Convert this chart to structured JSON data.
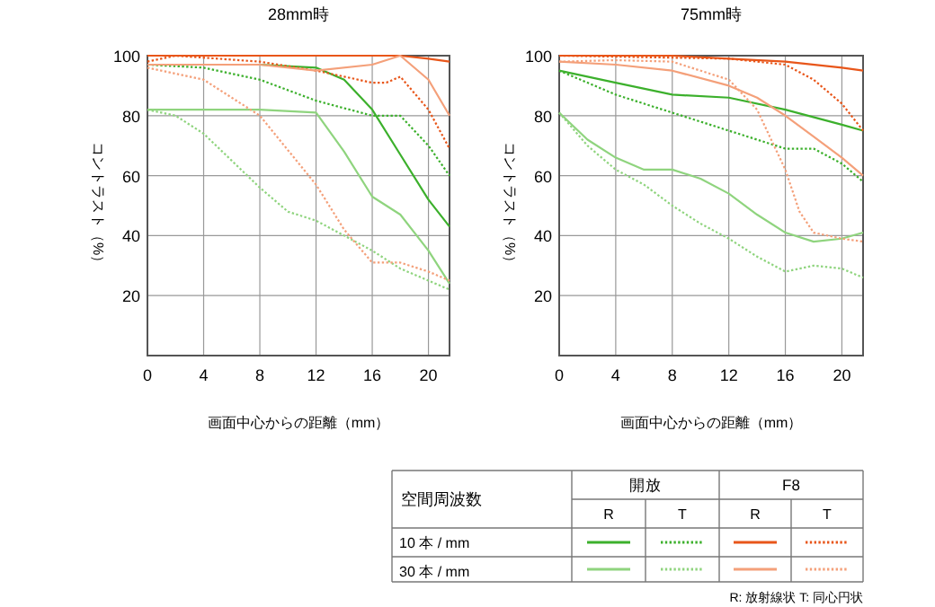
{
  "chart_data": [
    {
      "type": "line",
      "title": "28mm時",
      "xlabel": "画面中心からの距離（mm）",
      "ylabel": "コントラスト（%）",
      "xlim": [
        0,
        21.5
      ],
      "ylim": [
        0,
        100
      ],
      "xticks": [
        0,
        4,
        8,
        12,
        16,
        20
      ],
      "yticks": [
        20,
        40,
        60,
        80,
        100
      ],
      "grid": true,
      "series": [
        {
          "color": "#3cb02c",
          "line_style": "solid",
          "x": [
            0,
            4,
            8,
            12,
            14,
            16,
            18,
            20,
            21.5
          ],
          "values": [
            97,
            97,
            97,
            96,
            92,
            82,
            67,
            52,
            43
          ]
        },
        {
          "color": "#3cb02c",
          "line_style": "dotted",
          "x": [
            0,
            4,
            8,
            12,
            16,
            18,
            20,
            21.5
          ],
          "values": [
            97,
            96,
            92,
            85,
            80,
            80,
            70,
            60
          ]
        },
        {
          "color": "#e8561a",
          "line_style": "solid",
          "x": [
            0,
            4,
            8,
            12,
            16,
            18,
            20,
            21.5
          ],
          "values": [
            100,
            100,
            100,
            100,
            100,
            100,
            99,
            98
          ]
        },
        {
          "color": "#e8561a",
          "line_style": "dotted",
          "x": [
            0,
            2,
            8,
            12,
            14,
            16,
            17,
            18,
            20,
            21.5
          ],
          "values": [
            98,
            100,
            98,
            95,
            93,
            91,
            91,
            93,
            82,
            69
          ]
        },
        {
          "color": "#8fd47e",
          "line_style": "solid",
          "x": [
            0,
            4,
            8,
            12,
            14,
            16,
            18,
            20,
            21.5
          ],
          "values": [
            82,
            82,
            82,
            81,
            68,
            53,
            47,
            35,
            24
          ]
        },
        {
          "color": "#8fd47e",
          "line_style": "dotted",
          "x": [
            0,
            2,
            4,
            6,
            8,
            10,
            12,
            14,
            16,
            18,
            20,
            21.5
          ],
          "values": [
            82,
            80,
            74,
            65,
            56,
            48,
            45,
            40,
            35,
            29,
            25,
            22
          ]
        },
        {
          "color": "#f4a07a",
          "line_style": "solid",
          "x": [
            0,
            4,
            8,
            12,
            16,
            18,
            20,
            21.5
          ],
          "values": [
            97,
            97,
            97,
            95,
            97,
            100,
            92,
            80
          ]
        },
        {
          "color": "#f4a07a",
          "line_style": "dotted",
          "x": [
            0,
            4,
            8,
            12,
            14,
            16,
            18,
            20,
            21.5
          ],
          "values": [
            96,
            92,
            80,
            57,
            42,
            31,
            31,
            28,
            25
          ]
        }
      ]
    },
    {
      "type": "line",
      "title": "75mm時",
      "xlabel": "画面中心からの距離（mm）",
      "ylabel": "コントラスト（%）",
      "xlim": [
        0,
        21.5
      ],
      "ylim": [
        0,
        100
      ],
      "xticks": [
        0,
        4,
        8,
        12,
        16,
        20
      ],
      "yticks": [
        20,
        40,
        60,
        80,
        100
      ],
      "grid": true,
      "series": [
        {
          "color": "#3cb02c",
          "line_style": "solid",
          "x": [
            0,
            4,
            8,
            12,
            16,
            20,
            21.5
          ],
          "values": [
            95,
            91,
            87,
            86,
            82,
            77,
            75
          ]
        },
        {
          "color": "#3cb02c",
          "line_style": "dotted",
          "x": [
            0,
            4,
            8,
            12,
            16,
            18,
            20,
            21.5
          ],
          "values": [
            95,
            87,
            81,
            75,
            69,
            69,
            64,
            58
          ]
        },
        {
          "color": "#e8561a",
          "line_style": "solid",
          "x": [
            0,
            8,
            12,
            16,
            20,
            21.5
          ],
          "values": [
            100,
            100,
            99,
            98,
            96,
            95
          ]
        },
        {
          "color": "#e8561a",
          "line_style": "dotted",
          "x": [
            0,
            12,
            16,
            18,
            20,
            21.5
          ],
          "values": [
            100,
            99,
            97,
            92,
            84,
            75
          ]
        },
        {
          "color": "#8fd47e",
          "line_style": "solid",
          "x": [
            0,
            2,
            4,
            6,
            8,
            10,
            12,
            14,
            16,
            18,
            20,
            21.5
          ],
          "values": [
            81,
            72,
            66,
            62,
            62,
            59,
            54,
            47,
            41,
            38,
            39,
            41
          ]
        },
        {
          "color": "#8fd47e",
          "line_style": "dotted",
          "x": [
            0,
            2,
            4,
            6,
            8,
            10,
            12,
            14,
            16,
            18,
            20,
            21.5
          ],
          "values": [
            81,
            70,
            62,
            57,
            50,
            44,
            39,
            33,
            28,
            30,
            29,
            26
          ]
        },
        {
          "color": "#f4a07a",
          "line_style": "solid",
          "x": [
            0,
            4,
            8,
            12,
            14,
            16,
            18,
            20,
            21.5
          ],
          "values": [
            98,
            97,
            95,
            90,
            86,
            80,
            73,
            66,
            60
          ]
        },
        {
          "color": "#f4a07a",
          "line_style": "dotted",
          "x": [
            0,
            4,
            8,
            12,
            14,
            16,
            17,
            18,
            20,
            21.5
          ],
          "values": [
            98,
            98.5,
            98,
            92,
            82,
            62,
            48,
            41,
            39,
            38
          ]
        }
      ]
    },
    {
      "type": "other",
      "annotations": [
        "空間周波数",
        "開放",
        "F8",
        "R",
        "T",
        "R",
        "T",
        "10 本 / mm",
        "30 本 / mm",
        "R: 放射線状  T: 同心円状"
      ]
    }
  ]
}
